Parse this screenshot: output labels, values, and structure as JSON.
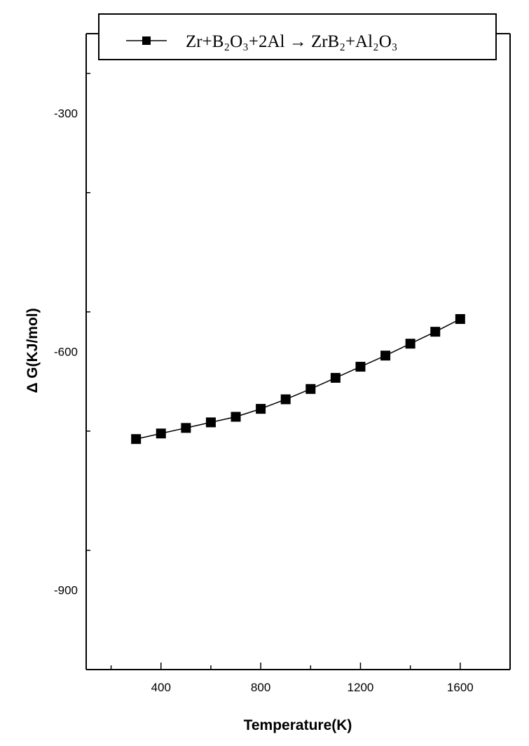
{
  "chart_data": {
    "type": "line",
    "title": "",
    "xlabel": "Temperature(K)",
    "ylabel": "Δ G(KJ/mol)",
    "xlim": [
      100,
      1800
    ],
    "ylim": [
      -1000,
      -200
    ],
    "x_ticks": [
      400,
      800,
      1200,
      1600
    ],
    "y_ticks": [
      -300,
      -600,
      -900
    ],
    "grid": false,
    "legend_position": "top",
    "series": [
      {
        "name": "Zr+B₂O₃+2Al → ZrB₂+Al₂O₃",
        "marker": "square",
        "color": "#000000",
        "x": [
          300,
          400,
          500,
          600,
          700,
          800,
          900,
          1000,
          1100,
          1200,
          1300,
          1400,
          1500,
          1600
        ],
        "y": [
          -710,
          -703,
          -696,
          -689,
          -682,
          -672,
          -660,
          -647,
          -633,
          -619,
          -605,
          -590,
          -575,
          -559
        ]
      }
    ]
  }
}
